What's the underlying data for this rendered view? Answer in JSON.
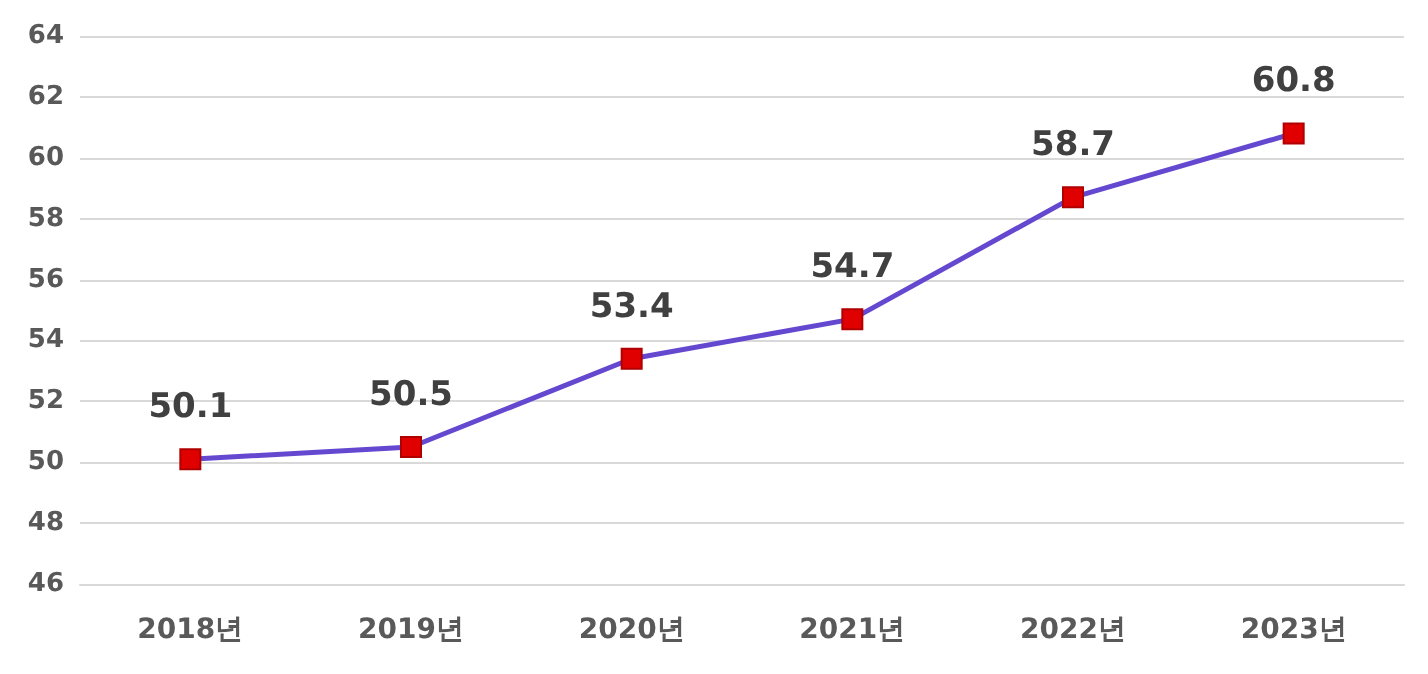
{
  "chart_data": {
    "type": "line",
    "categories": [
      "2018년",
      "2019년",
      "2020년",
      "2021년",
      "2022년",
      "2023년"
    ],
    "series": [
      {
        "color": "#6548d0",
        "values": [
          50.1,
          50.5,
          53.4,
          54.7,
          58.7,
          60.8
        ]
      }
    ],
    "ylim": [
      46,
      64
    ],
    "yticks": [
      46,
      48,
      50,
      52,
      54,
      56,
      58,
      60,
      62,
      64
    ],
    "grid": "y",
    "marker": "square",
    "line_style": "solid",
    "data_labels": true
  }
}
